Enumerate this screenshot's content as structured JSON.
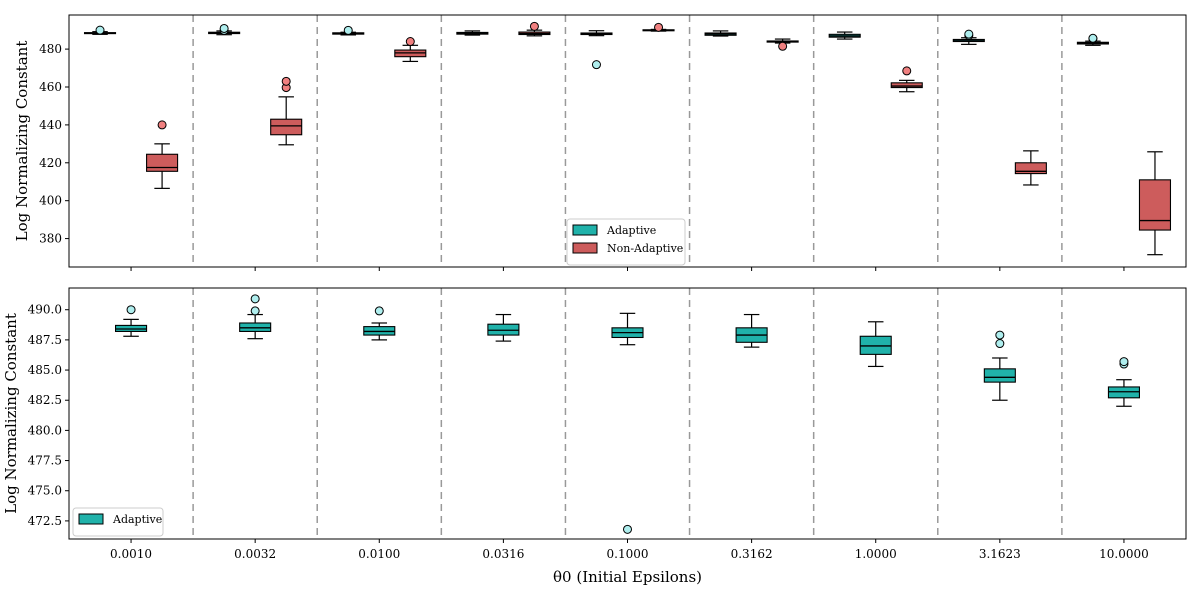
{
  "chart_data": [
    {
      "type": "box",
      "ylabel": "Log Normalizing Constant",
      "ylim": [
        365,
        498
      ],
      "yticks": [
        380,
        400,
        420,
        440,
        460,
        480
      ],
      "categories": [
        "0.0010",
        "0.0032",
        "0.0100",
        "0.0316",
        "0.1000",
        "0.3162",
        "1.0000",
        "3.1623",
        "10.0000"
      ],
      "show_xtick_labels": false,
      "legend": {
        "position": "lower-center",
        "entries": [
          "Adaptive",
          "Non-Adaptive"
        ]
      },
      "series": [
        {
          "name": "Adaptive",
          "color": "#20b2aa",
          "flier_color": "#afeeee",
          "boxes": [
            {
              "whislo": 487.8,
              "q1": 488.2,
              "med": 488.4,
              "q3": 488.7,
              "whishi": 489.2,
              "fliers": [
                490.0
              ]
            },
            {
              "whislo": 487.6,
              "q1": 488.2,
              "med": 488.5,
              "q3": 488.9,
              "whishi": 489.6,
              "fliers": [
                489.9,
                490.9
              ]
            },
            {
              "whislo": 487.5,
              "q1": 487.9,
              "med": 488.2,
              "q3": 488.6,
              "whishi": 488.9,
              "fliers": [
                489.9
              ]
            },
            {
              "whislo": 487.4,
              "q1": 487.9,
              "med": 488.3,
              "q3": 488.8,
              "whishi": 489.6,
              "fliers": []
            },
            {
              "whislo": 487.1,
              "q1": 487.7,
              "med": 488.1,
              "q3": 488.5,
              "whishi": 489.7,
              "fliers": [
                471.8
              ]
            },
            {
              "whislo": 486.9,
              "q1": 487.3,
              "med": 487.9,
              "q3": 488.5,
              "whishi": 489.6,
              "fliers": []
            },
            {
              "whislo": 485.3,
              "q1": 486.3,
              "med": 487.0,
              "q3": 487.8,
              "whishi": 489.0,
              "fliers": []
            },
            {
              "whislo": 482.5,
              "q1": 484.0,
              "med": 484.4,
              "q3": 485.1,
              "whishi": 486.0,
              "fliers": [
                487.2,
                487.9
              ]
            },
            {
              "whislo": 482.0,
              "q1": 482.7,
              "med": 483.2,
              "q3": 483.6,
              "whishi": 484.2,
              "fliers": [
                485.5,
                485.7
              ]
            }
          ]
        },
        {
          "name": "Non-Adaptive",
          "color": "#cd5c5c",
          "flier_color": "#f08080",
          "boxes": [
            {
              "whislo": 406.5,
              "q1": 415.5,
              "med": 417.5,
              "q3": 424.5,
              "whishi": 430.0,
              "fliers": [
                440.0
              ]
            },
            {
              "whislo": 429.5,
              "q1": 434.8,
              "med": 439.5,
              "q3": 443.0,
              "whishi": 454.8,
              "fliers": [
                459.7,
                463.0
              ]
            },
            {
              "whislo": 473.5,
              "q1": 476.0,
              "med": 478.0,
              "q3": 479.5,
              "whishi": 482.0,
              "fliers": [
                484.0
              ]
            },
            {
              "whislo": 487.0,
              "q1": 487.7,
              "med": 488.2,
              "q3": 489.0,
              "whishi": 490.0,
              "fliers": [
                492.0
              ]
            },
            {
              "whislo": 489.5,
              "q1": 489.8,
              "med": 490.0,
              "q3": 490.2,
              "whishi": 490.4,
              "fliers": [
                491.5
              ]
            },
            {
              "whislo": 483.2,
              "q1": 483.7,
              "med": 484.0,
              "q3": 484.3,
              "whishi": 485.3,
              "fliers": [
                481.5
              ]
            },
            {
              "whislo": 457.5,
              "q1": 459.7,
              "med": 460.5,
              "q3": 462.2,
              "whishi": 463.5,
              "fliers": [
                468.5
              ]
            },
            {
              "whislo": 408.3,
              "q1": 414.3,
              "med": 415.5,
              "q3": 420.0,
              "whishi": 426.3,
              "fliers": []
            },
            {
              "whislo": 371.5,
              "q1": 384.5,
              "med": 389.5,
              "q3": 411.0,
              "whishi": 425.8,
              "fliers": []
            }
          ]
        }
      ]
    },
    {
      "type": "box",
      "ylabel": "Log Normalizing Constant",
      "xlabel": "θ0 (Initial Epsilons)",
      "ylim": [
        471.0,
        491.8
      ],
      "yticks": [
        "472.5",
        "475.0",
        "477.5",
        "480.0",
        "482.5",
        "485.0",
        "487.5",
        "490.0"
      ],
      "categories": [
        "0.0010",
        "0.0032",
        "0.0100",
        "0.0316",
        "0.1000",
        "0.3162",
        "1.0000",
        "3.1623",
        "10.0000"
      ],
      "show_xtick_labels": true,
      "legend": {
        "position": "lower-left",
        "entries": [
          "Adaptive"
        ]
      },
      "series": [
        {
          "name": "Adaptive",
          "color": "#20b2aa",
          "flier_color": "#afeeee",
          "boxes": [
            {
              "whislo": 487.8,
              "q1": 488.2,
              "med": 488.4,
              "q3": 488.7,
              "whishi": 489.2,
              "fliers": [
                490.0
              ]
            },
            {
              "whislo": 487.6,
              "q1": 488.2,
              "med": 488.5,
              "q3": 488.9,
              "whishi": 489.6,
              "fliers": [
                489.9,
                490.9
              ]
            },
            {
              "whislo": 487.5,
              "q1": 487.9,
              "med": 488.2,
              "q3": 488.6,
              "whishi": 488.9,
              "fliers": [
                489.9
              ]
            },
            {
              "whislo": 487.4,
              "q1": 487.9,
              "med": 488.3,
              "q3": 488.8,
              "whishi": 489.6,
              "fliers": []
            },
            {
              "whislo": 487.1,
              "q1": 487.7,
              "med": 488.1,
              "q3": 488.5,
              "whishi": 489.7,
              "fliers": [
                471.8
              ]
            },
            {
              "whislo": 486.9,
              "q1": 487.3,
              "med": 487.9,
              "q3": 488.5,
              "whishi": 489.6,
              "fliers": []
            },
            {
              "whislo": 485.3,
              "q1": 486.3,
              "med": 487.0,
              "q3": 487.8,
              "whishi": 489.0,
              "fliers": []
            },
            {
              "whislo": 482.5,
              "q1": 484.0,
              "med": 484.4,
              "q3": 485.1,
              "whishi": 486.0,
              "fliers": [
                487.2,
                487.9
              ]
            },
            {
              "whislo": 482.0,
              "q1": 482.7,
              "med": 483.2,
              "q3": 483.6,
              "whishi": 484.2,
              "fliers": [
                485.5,
                485.7
              ]
            }
          ]
        }
      ]
    }
  ]
}
